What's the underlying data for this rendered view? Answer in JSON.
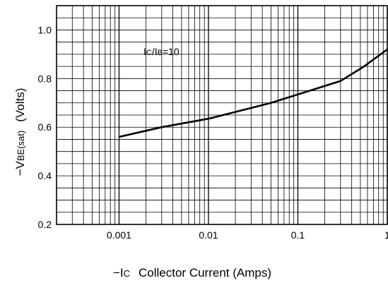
{
  "chart_data": {
    "type": "line",
    "x_scale": "log",
    "xlim": [
      0.0002,
      1
    ],
    "ylim": [
      0.2,
      1.1
    ],
    "grid": true,
    "x_ticks": [
      {
        "value": 0.001,
        "label": "0.001"
      },
      {
        "value": 0.01,
        "label": "0.01"
      },
      {
        "value": 0.1,
        "label": "0.1"
      },
      {
        "value": 1,
        "label": "1"
      }
    ],
    "y_ticks": [
      {
        "value": 0.2,
        "label": "0.2"
      },
      {
        "value": 0.4,
        "label": "0.4"
      },
      {
        "value": 0.6,
        "label": "0.6"
      },
      {
        "value": 0.8,
        "label": "0.8"
      },
      {
        "value": 1.0,
        "label": "1.0"
      }
    ],
    "xlabel": {
      "symbol": "−I",
      "symbol_sub": "C",
      "text": "Collector Current (Amps)"
    },
    "ylabel": {
      "symbol": "−V",
      "symbol_sub": "BE(sat)",
      "text": "(Volts)"
    },
    "annotation": {
      "l1": "I",
      "s1": "C",
      "mid": "/I",
      "s2": "B",
      "rest": "=10"
    },
    "series": [
      {
        "x": [
          0.001,
          0.003,
          0.01,
          0.05,
          0.3,
          0.55,
          1.0
        ],
        "y": [
          0.56,
          0.6,
          0.635,
          0.7,
          0.79,
          0.85,
          0.92
        ]
      }
    ]
  }
}
